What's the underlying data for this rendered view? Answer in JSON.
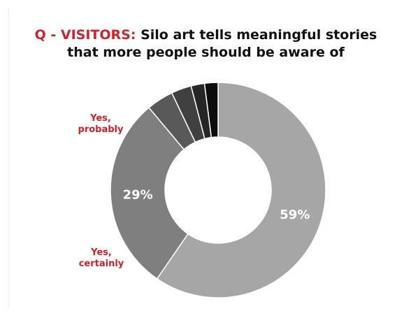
{
  "title": {
    "prefix": "Q - VISITORS:",
    "line1": "Silo art tells meaningful stories",
    "line2": "that more people should be aware of"
  },
  "category_labels": {
    "probably": [
      "Yes,",
      "probably"
    ],
    "certainly": [
      "Yes,",
      "certainly"
    ]
  },
  "chart_data": {
    "type": "pie",
    "donut": true,
    "title": "Q - VISITORS: Silo art tells meaningful stories that more people should be aware of",
    "slices": [
      {
        "label": "Yes, certainly",
        "value": 59,
        "data_label": "59%",
        "color": "#a6a6a6"
      },
      {
        "label": "Yes, probably",
        "value": 29,
        "data_label": "29%",
        "color": "#7f7f7f"
      },
      {
        "label": "",
        "value": 4,
        "data_label": "",
        "color": "#595959"
      },
      {
        "label": "",
        "value": 3,
        "data_label": "",
        "color": "#404040"
      },
      {
        "label": "",
        "value": 2,
        "data_label": "",
        "color": "#262626"
      },
      {
        "label": "",
        "value": 2,
        "data_label": "",
        "color": "#0d0d0d"
      }
    ]
  },
  "colors": {
    "accent": "#d6202a",
    "title_text": "#111111",
    "data_label_text": "#ffffff"
  }
}
